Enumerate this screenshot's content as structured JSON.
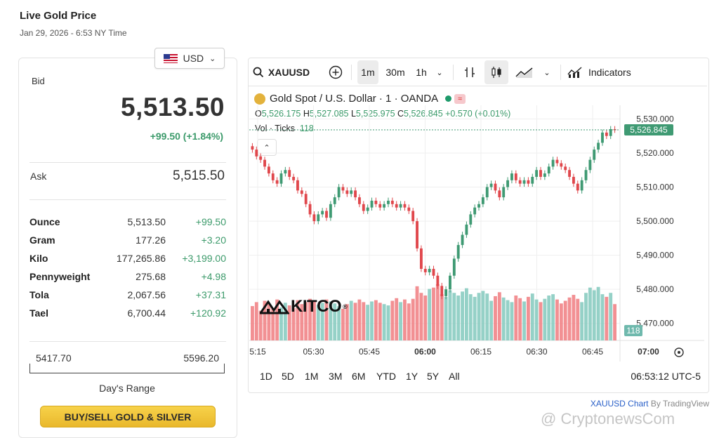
{
  "header": {
    "title": "Live Gold Price",
    "timestamp": "Jan 29, 2026 - 6:53 NY Time"
  },
  "currency": {
    "selected": "USD"
  },
  "price": {
    "bid_label": "Bid",
    "bid": "5,513.50",
    "bid_change": "+99.50 (+1.84%)",
    "ask_label": "Ask",
    "ask": "5,515.50"
  },
  "units": [
    {
      "name": "Ounce",
      "price": "5,513.50",
      "change": "+99.50"
    },
    {
      "name": "Gram",
      "price": "177.26",
      "change": "+3.20"
    },
    {
      "name": "Kilo",
      "price": "177,265.86",
      "change": "+3,199.00"
    },
    {
      "name": "Pennyweight",
      "price": "275.68",
      "change": "+4.98"
    },
    {
      "name": "Tola",
      "price": "2,067.56",
      "change": "+37.31"
    },
    {
      "name": "Tael",
      "price": "6,700.44",
      "change": "+120.92"
    }
  ],
  "day_range": {
    "low": "5417.70",
    "high": "5596.20",
    "label": "Day's Range"
  },
  "buy_button": "BUY/SELL GOLD & SILVER",
  "toolbar": {
    "symbol": "XAUUSD",
    "intervals": [
      "1m",
      "30m",
      "1h"
    ],
    "active_interval": "1m",
    "indicators_label": "Indicators"
  },
  "chart_header": {
    "title": "Gold Spot / U.S. Dollar · 1 · OANDA",
    "open_label": "O",
    "open": "5,526.175",
    "high_label": "H",
    "high": "5,527.085",
    "low_label": "L",
    "low": "5,525.975",
    "close_label": "C",
    "close": "5,526.845",
    "change": "+0.570 (+0.01%)",
    "vol_label": "Vol · Ticks",
    "vol_value": "118"
  },
  "brand_logo": "KITCO",
  "range_buttons": [
    "1D",
    "5D",
    "1M",
    "3M",
    "6M",
    "YTD",
    "1Y",
    "5Y",
    "All"
  ],
  "clock": "06:53:12 UTC-5",
  "attribution": {
    "link": "XAUUSD Chart",
    "by": "By TradingView"
  },
  "watermark": "@ CryptonewsCom",
  "colors": {
    "up": "#82c9bd",
    "down": "#f07d80",
    "up_body": "#3f9a73",
    "down_body": "#e0474c",
    "accent_gold": "#f2c53d"
  },
  "chart_data": {
    "type": "candlestick",
    "x_ticks": [
      "5:15",
      "05:30",
      "05:45",
      "06:00",
      "06:15",
      "06:30",
      "06:45",
      "07:00"
    ],
    "y_ticks": [
      5530,
      5520,
      5510,
      5500,
      5490,
      5480,
      5470
    ],
    "y_tick_labels": [
      "5,530.000",
      "5,520.000",
      "5,510.000",
      "5,500.000",
      "5,490.000",
      "5,480.000",
      "5,470.000"
    ],
    "ylim": [
      5465,
      5534
    ],
    "last_price": "5,526.845",
    "last_volume": "118",
    "close_series": [
      5521,
      5519,
      5518,
      5516,
      5514,
      5512,
      5511,
      5514,
      5515,
      5513,
      5512,
      5509,
      5508,
      5505,
      5502,
      5500,
      5502,
      5503,
      5501,
      5505,
      5507,
      5510,
      5509,
      5508,
      5509,
      5507,
      5505,
      5503,
      5504,
      5506,
      5505,
      5504,
      5505,
      5506,
      5505,
      5504,
      5505,
      5504,
      5503,
      5500,
      5492,
      5486,
      5485,
      5486,
      5484,
      5481,
      5478,
      5480,
      5484,
      5489,
      5493,
      5496,
      5499,
      5502,
      5504,
      5505,
      5507,
      5510,
      5511,
      5509,
      5507,
      5510,
      5512,
      5514,
      5512,
      5511,
      5512,
      5511,
      5513,
      5515,
      5513,
      5514,
      5516,
      5518,
      5517,
      5516,
      5515,
      5513,
      5511,
      5509,
      5512,
      5515,
      5518,
      5521,
      5523,
      5526,
      5525,
      5527,
      5526.8
    ],
    "volume_series": [
      52,
      58,
      45,
      60,
      55,
      48,
      62,
      50,
      57,
      53,
      49,
      61,
      55,
      58,
      63,
      60,
      54,
      57,
      62,
      59,
      56,
      52,
      48,
      55,
      60,
      57,
      62,
      58,
      54,
      59,
      61,
      57,
      55,
      53,
      60,
      64,
      58,
      62,
      56,
      63,
      82,
      72,
      68,
      78,
      80,
      85,
      70,
      66,
      76,
      72,
      68,
      74,
      79,
      70,
      66,
      72,
      75,
      71,
      60,
      67,
      73,
      65,
      61,
      58,
      68,
      64,
      59,
      66,
      71,
      62,
      58,
      63,
      68,
      70,
      62,
      56,
      60,
      65,
      69,
      63,
      58,
      72,
      80,
      76,
      81,
      70,
      66,
      72,
      55
    ]
  }
}
